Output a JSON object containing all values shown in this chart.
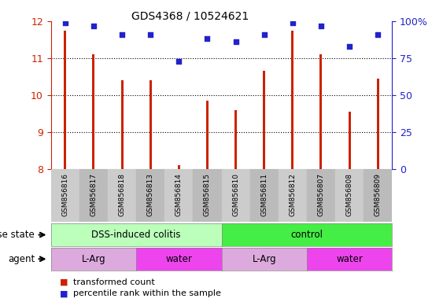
{
  "title": "GDS4368 / 10524621",
  "samples": [
    "GSM856816",
    "GSM856817",
    "GSM856818",
    "GSM856813",
    "GSM856814",
    "GSM856815",
    "GSM856810",
    "GSM856811",
    "GSM856812",
    "GSM856807",
    "GSM856808",
    "GSM856809"
  ],
  "bar_values": [
    11.75,
    11.1,
    10.4,
    10.4,
    8.1,
    9.85,
    9.6,
    10.65,
    11.75,
    11.1,
    9.55,
    10.45
  ],
  "dot_values": [
    99,
    97,
    91,
    91,
    73,
    88,
    86,
    91,
    99,
    97,
    83,
    91
  ],
  "ylim_left": [
    8,
    12
  ],
  "yticks_left": [
    8,
    9,
    10,
    11,
    12
  ],
  "ylim_right": [
    0,
    100
  ],
  "yticks_right": [
    0,
    25,
    50,
    75,
    100
  ],
  "bar_color": "#CC2200",
  "dot_color": "#2222CC",
  "bar_bottom": 8,
  "disease_state_groups": [
    {
      "label": "DSS-induced colitis",
      "start": 0,
      "end": 6,
      "color": "#BBFFBB"
    },
    {
      "label": "control",
      "start": 6,
      "end": 12,
      "color": "#44EE44"
    }
  ],
  "agent_groups": [
    {
      "label": "L-Arg",
      "start": 0,
      "end": 3,
      "color": "#DDAADD"
    },
    {
      "label": "water",
      "start": 3,
      "end": 6,
      "color": "#EE44EE"
    },
    {
      "label": "L-Arg",
      "start": 6,
      "end": 9,
      "color": "#DDAADD"
    },
    {
      "label": "water",
      "start": 9,
      "end": 12,
      "color": "#EE44EE"
    }
  ],
  "legend_red_label": "transformed count",
  "legend_blue_label": "percentile rank within the sample",
  "tick_label_color_left": "#CC2200",
  "tick_label_color_right": "#2222CC",
  "disease_state_label": "disease state",
  "agent_label": "agent",
  "sample_bg_color": "#CCCCCC",
  "grid_color": "#000000"
}
